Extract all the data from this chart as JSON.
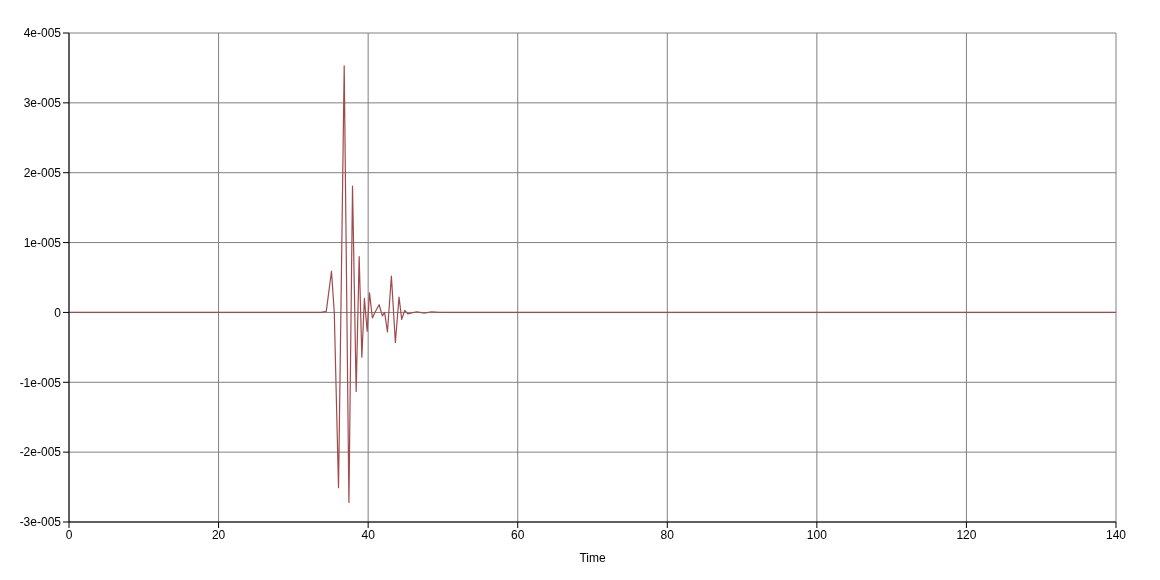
{
  "chart_data": {
    "type": "line",
    "xlabel": "Time",
    "series": [
      {
        "color": "#a04a4a",
        "x": [
          0,
          33.7,
          34.4,
          35.1,
          35.47,
          36.04,
          36.8,
          37.43,
          37.91,
          38.4,
          38.8,
          39.16,
          39.5,
          39.87,
          40.18,
          40.57,
          40.9,
          41.47,
          41.9,
          42.2,
          42.58,
          43.11,
          43.64,
          44.13,
          44.49,
          44.9,
          45.3,
          46.5,
          47.5,
          48.5,
          49.5,
          140
        ],
        "values": [
          0,
          0,
          1.5e-07,
          5.9e-06,
          0,
          -2.51e-05,
          3.53e-05,
          -2.72e-05,
          1.81e-05,
          -1.13e-05,
          8e-06,
          -6.4e-06,
          2e-06,
          -2.7e-06,
          2.8e-06,
          -8e-07,
          0,
          1.1e-06,
          -5e-07,
          0,
          -2.8e-06,
          5.2e-06,
          -4.3e-06,
          2.2e-06,
          -1e-06,
          3e-07,
          -2e-07,
          1e-07,
          -1e-07,
          1e-07,
          0,
          0
        ]
      }
    ],
    "xlim": [
      0,
      140
    ],
    "xticks": [
      0,
      20,
      40,
      60,
      80,
      100,
      120,
      140
    ],
    "ylim": [
      -3e-05,
      4e-05
    ],
    "yticks": [
      {
        "value": -3e-05,
        "label": "-3e-005"
      },
      {
        "value": -2e-05,
        "label": "-2e-005"
      },
      {
        "value": -1e-05,
        "label": "-1e-005"
      },
      0,
      {
        "value": 1e-05,
        "label": "1e-005"
      },
      {
        "value": 2e-05,
        "label": "2e-005"
      },
      {
        "value": 3e-05,
        "label": "3e-005"
      },
      {
        "value": 4e-05,
        "label": "4e-005"
      }
    ],
    "grid": true,
    "marker": "none",
    "line_style": "solid"
  }
}
